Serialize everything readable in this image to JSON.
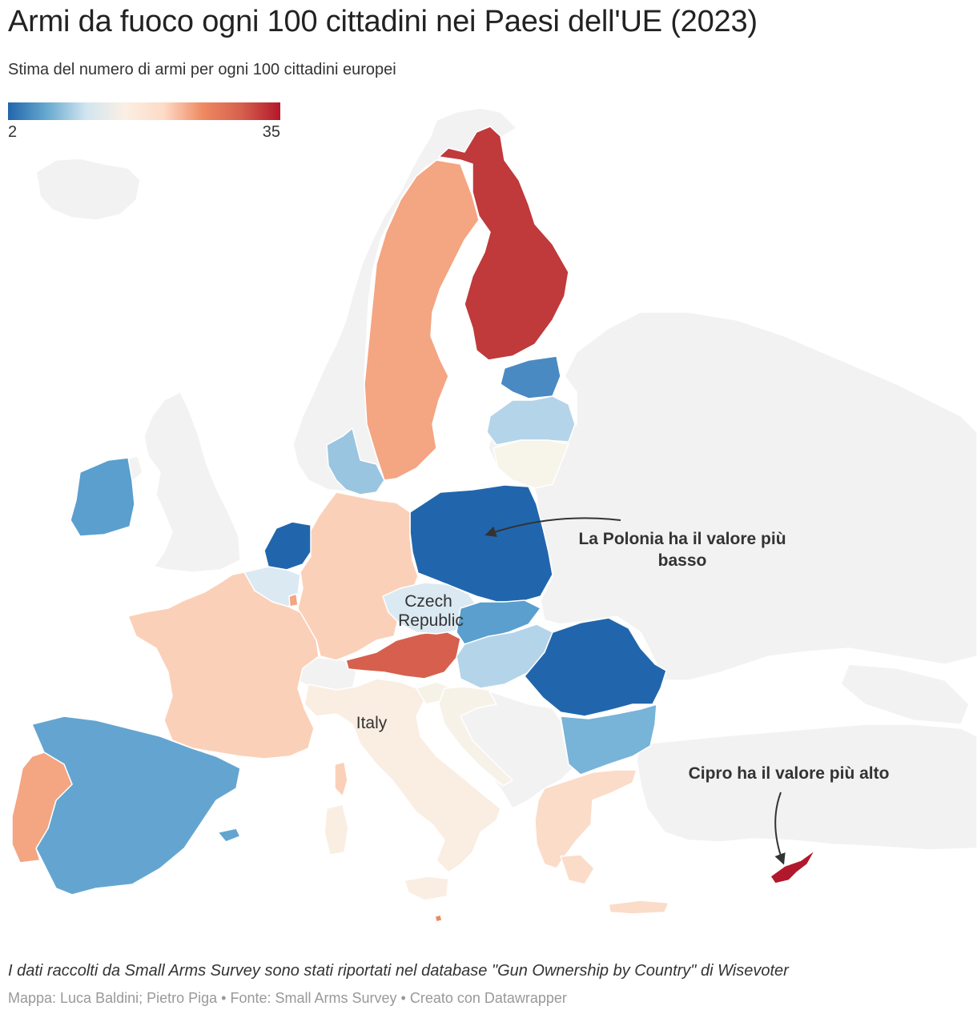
{
  "title": "Armi da fuoco ogni 100 cittadini nei Paesi dell'UE (2023)",
  "subtitle": "Stima del numero di armi per ogni 100 cittadini europei",
  "legend": {
    "min_label": "2",
    "max_label": "35",
    "min": 2,
    "max": 35,
    "color_stops": [
      "#2166ac",
      "#67a9cf",
      "#d1e5f0",
      "#fbefe3",
      "#fddbc7",
      "#ef8a62",
      "#d6604d",
      "#b2182b"
    ]
  },
  "map_labels": {
    "czech_line1": "Czech",
    "czech_line2": "Republic",
    "italy": "Italy"
  },
  "annotations": {
    "poland_line1": "La Polonia ha il valore più",
    "poland_line2": "basso",
    "cyprus": "Cipro ha il valore più alto"
  },
  "colors": {
    "non_eu": "#f2f2f2",
    "finland": "#c0393b",
    "sweden": "#f4a582",
    "estonia": "#4a8ac3",
    "latvia": "#b4d4e9",
    "lithuania": "#f7f4ea",
    "poland": "#2166ac",
    "germany": "#fbd0b9",
    "denmark": "#9ac5e0",
    "netherlands": "#2166ac",
    "belgium": "#dbe9f2",
    "france": "#fbd0b9",
    "ireland": "#5a9fcd",
    "spain": "#63a5d0",
    "portugal": "#f4a582",
    "italy": "#faeee2",
    "austria": "#d6604d",
    "czechia": "#dbe9f2",
    "slovakia": "#5a9fcd",
    "hungary": "#b4d4e9",
    "romania": "#2166ac",
    "bulgaria": "#78b3d8",
    "greece": "#fbdcc9",
    "croatia": "#f7f2e8",
    "slovenia": "#f7f2e8",
    "cyprus": "#b2182b",
    "luxembourg": "#f4a582",
    "malta": "#ef8a62"
  },
  "footer": {
    "note": "I dati raccolti da Small Arms Survey sono stati riportati nel database \"Gun Ownership by Country\" di Wisevoter",
    "byline": "Mappa: Luca Baldini; Pietro Piga • Fonte: Small Arms Survey • Creato con Datawrapper"
  }
}
